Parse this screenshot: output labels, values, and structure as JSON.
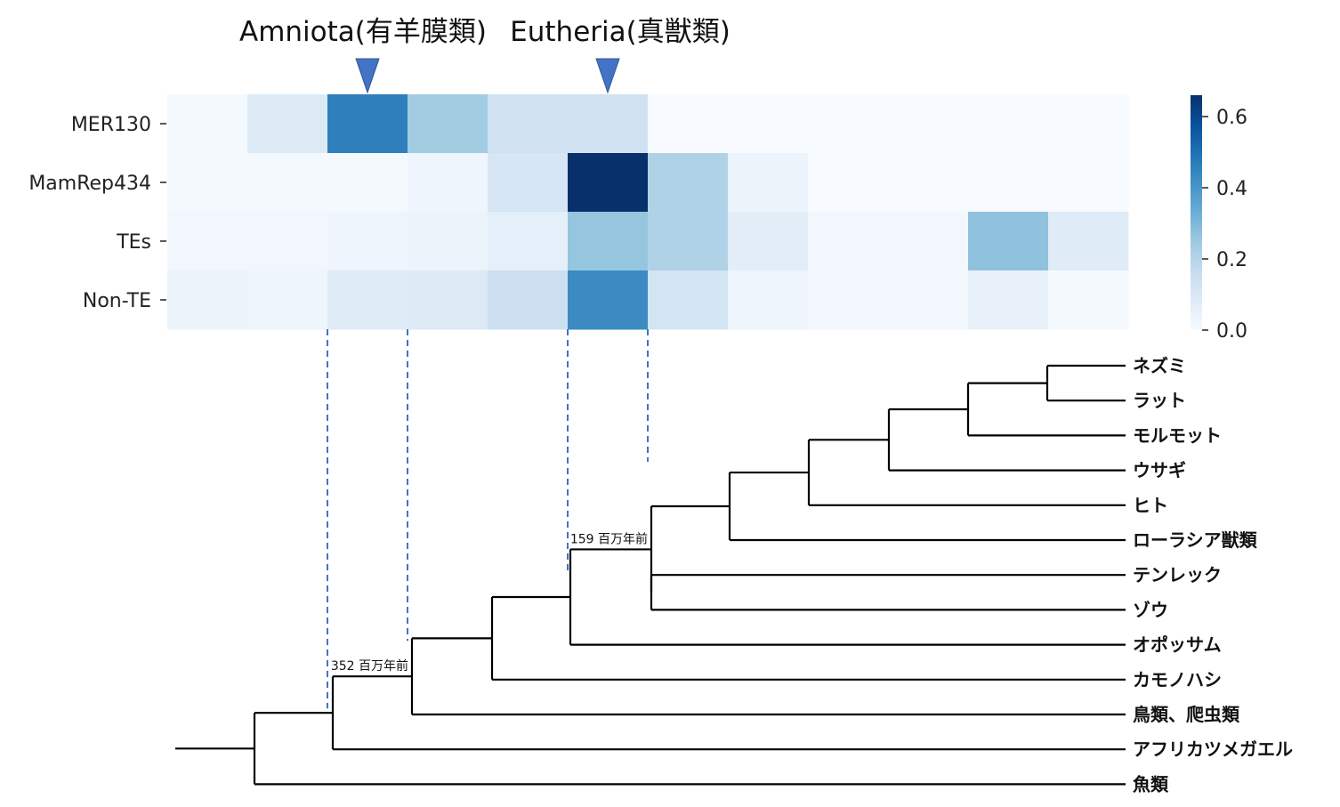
{
  "chart_data": {
    "type": "heatmap",
    "rows": [
      "MER130",
      "MamRep434",
      "TEs",
      "Non-TE"
    ],
    "columns": [
      "",
      "",
      "",
      "",
      "",
      "",
      "",
      "",
      "",
      "",
      "",
      ""
    ],
    "values": [
      [
        0.01,
        0.09,
        0.46,
        0.24,
        0.13,
        0.13,
        0.0,
        0.0,
        0.0,
        0.0,
        0.0,
        0.0
      ],
      [
        0.01,
        0.01,
        0.01,
        0.03,
        0.11,
        0.66,
        0.21,
        0.04,
        0.0,
        0.0,
        0.0,
        0.0
      ],
      [
        0.02,
        0.02,
        0.03,
        0.04,
        0.06,
        0.26,
        0.21,
        0.07,
        0.02,
        0.02,
        0.27,
        0.08
      ],
      [
        0.04,
        0.03,
        0.08,
        0.09,
        0.14,
        0.43,
        0.12,
        0.03,
        0.02,
        0.02,
        0.05,
        0.01
      ]
    ],
    "colormap": "Blues",
    "vmin": 0.0,
    "vmax": 0.66,
    "colorbar_ticks": [
      "0.0",
      "0.2",
      "0.4",
      "0.6"
    ],
    "colorbar_tick_values": [
      0.0,
      0.2,
      0.4,
      0.6
    ],
    "markers": [
      {
        "label": "Amniota(有羊膜類)",
        "column": 2
      },
      {
        "label": "Eutheria(真獣類)",
        "column": 5
      }
    ],
    "marker_color": "#4472c4",
    "tree": {
      "leaves": [
        "ネズミ",
        "ラット",
        "モルモット",
        "ウサギ",
        "ヒト",
        "ローラシア獣類",
        "テンレック",
        "ゾウ",
        "オポッサム",
        "カモノハシ",
        "鳥類、爬虫類",
        "アフリカツメガエル",
        "魚類"
      ],
      "node_labels": [
        {
          "text": "159 百万年前",
          "node": "eutheria"
        },
        {
          "text": "352 百万年前",
          "node": "amniota"
        }
      ]
    }
  }
}
